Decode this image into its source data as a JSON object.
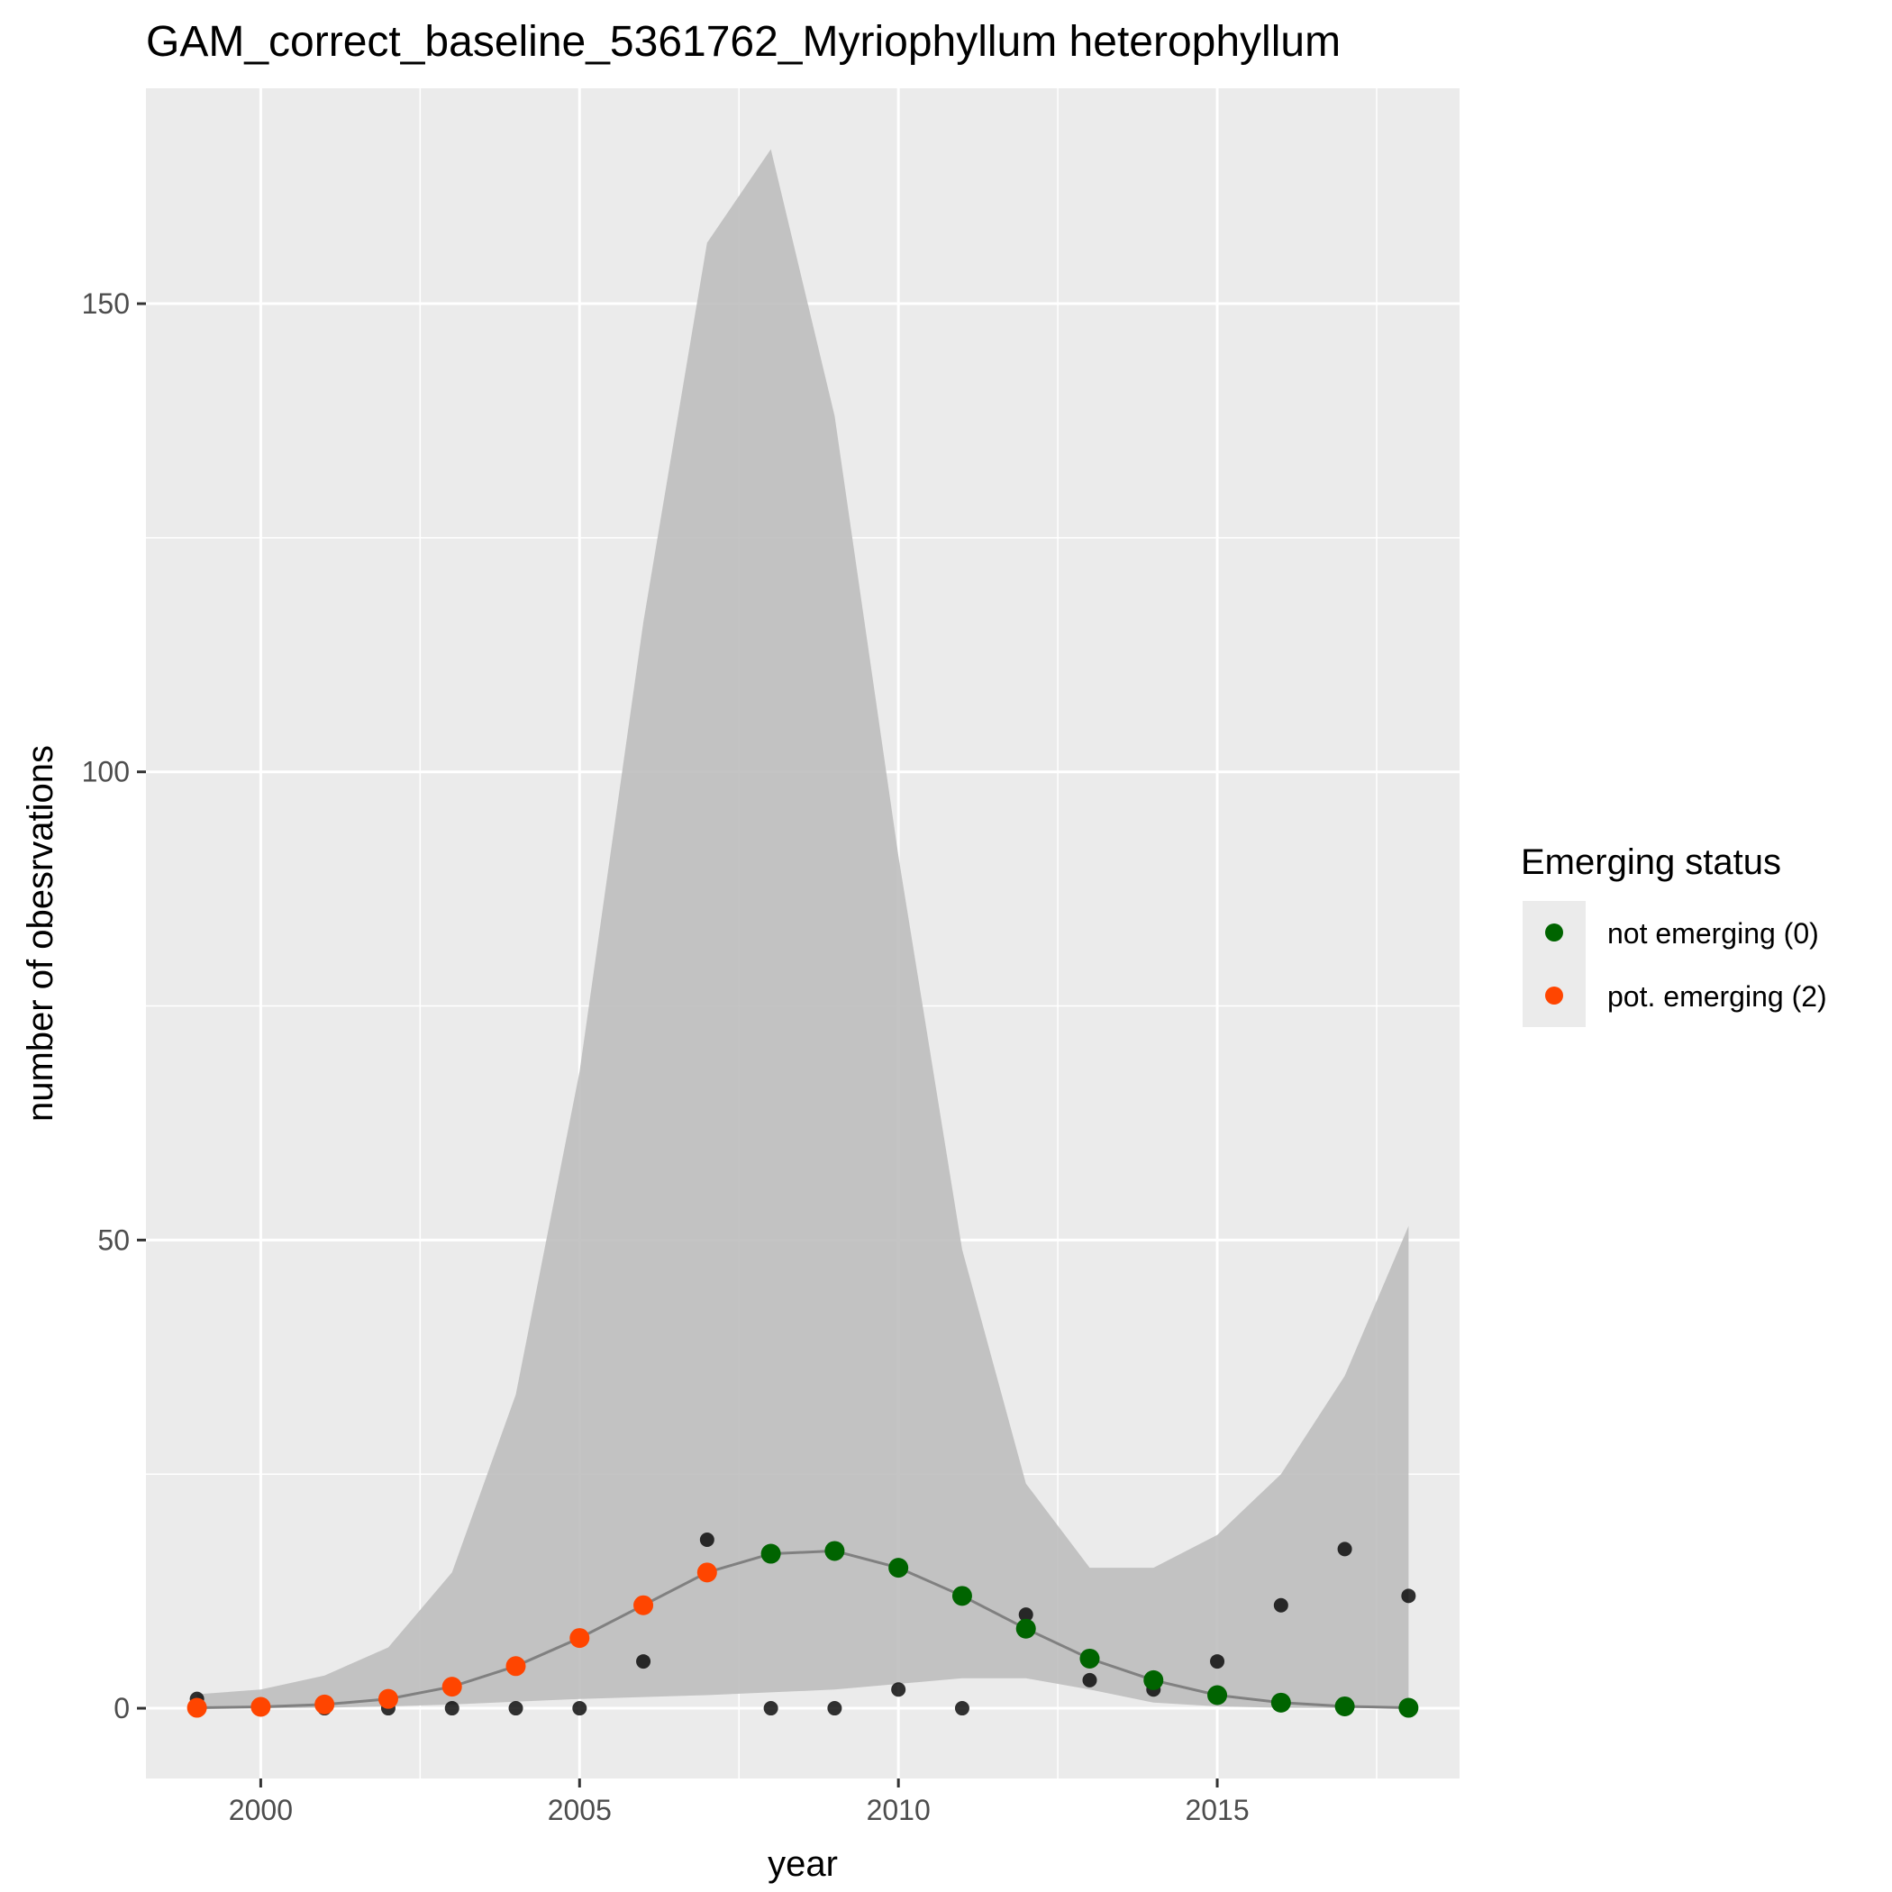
{
  "chart_data": {
    "type": "scatter",
    "title": "GAM_correct_baseline_5361762_Myriophyllum heterophyllum",
    "xlabel": "year",
    "ylabel": "number of obesrvations",
    "xlim": [
      1998.2,
      2018.8
    ],
    "ylim": [
      -7.5,
      173
    ],
    "x_ticks": [
      2000,
      2005,
      2010,
      2015
    ],
    "y_ticks": [
      0,
      50,
      100,
      150
    ],
    "grid": true,
    "legend": {
      "title": "Emerging status",
      "position": "right",
      "entries": [
        {
          "label": "not emerging (0)",
          "color": "#006400"
        },
        {
          "label": "pot. emerging (2)",
          "color": "#ff4500"
        }
      ]
    },
    "colors": {
      "panel": "#ebebeb",
      "grid": "#ffffff",
      "ribbon": "#bebebe",
      "fit_line": "#808080",
      "observed": "#000000",
      "not_emerging": "#006400",
      "pot_emerging": "#ff4500"
    },
    "years": [
      1999,
      2000,
      2001,
      2002,
      2003,
      2004,
      2005,
      2006,
      2007,
      2008,
      2009,
      2010,
      2011,
      2012,
      2013,
      2014,
      2015,
      2016,
      2017,
      2018
    ],
    "observed": [
      1,
      0,
      0,
      0,
      0,
      0,
      0,
      5,
      18,
      0,
      0,
      2,
      0,
      10,
      3,
      2,
      5,
      11,
      17,
      12
    ],
    "fit": [
      0.05,
      0.15,
      0.4,
      1,
      2.3,
      4.5,
      7.5,
      11,
      14.5,
      16.5,
      16.8,
      15,
      12,
      8.5,
      5.3,
      3,
      1.4,
      0.6,
      0.2,
      0.05
    ],
    "ci_lower": [
      0,
      0,
      0.05,
      0.2,
      0.4,
      0.7,
      1,
      1.2,
      1.4,
      1.7,
      2,
      2.6,
      3.2,
      3.2,
      2,
      0.6,
      0.2,
      0.05,
      0.02,
      0
    ],
    "ci_upper": [
      1.5,
      2,
      3.5,
      6.5,
      14.5,
      33.5,
      68,
      116,
      156.5,
      166.5,
      138,
      91,
      49,
      24,
      15,
      15,
      18.5,
      25,
      35.5,
      51.5
    ],
    "status": [
      2,
      2,
      2,
      2,
      2,
      2,
      2,
      2,
      2,
      0,
      0,
      0,
      0,
      0,
      0,
      0,
      0,
      0,
      0,
      0
    ]
  }
}
